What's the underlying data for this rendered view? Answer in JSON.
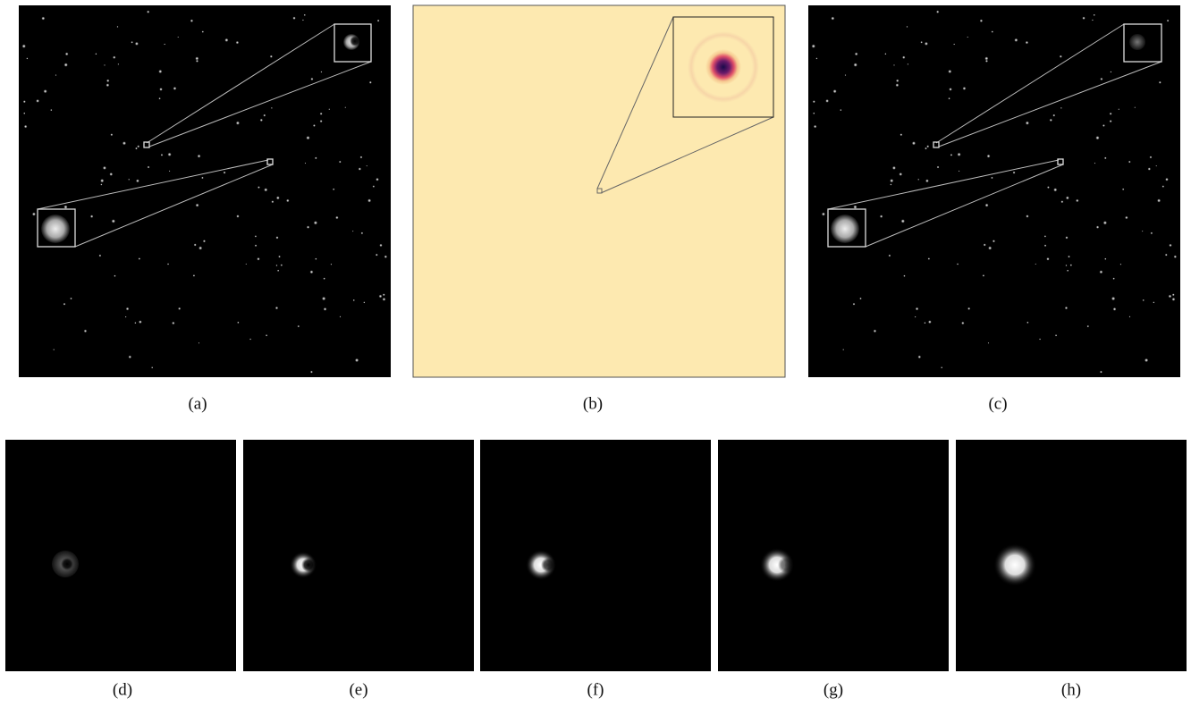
{
  "panels": [
    {
      "caption": "(a)"
    },
    {
      "caption": "(b)"
    },
    {
      "caption": "(c)"
    },
    {
      "caption": "(d)"
    },
    {
      "caption": "(e)"
    },
    {
      "caption": "(f)"
    },
    {
      "caption": "(g)"
    },
    {
      "caption": "(h)"
    }
  ]
}
